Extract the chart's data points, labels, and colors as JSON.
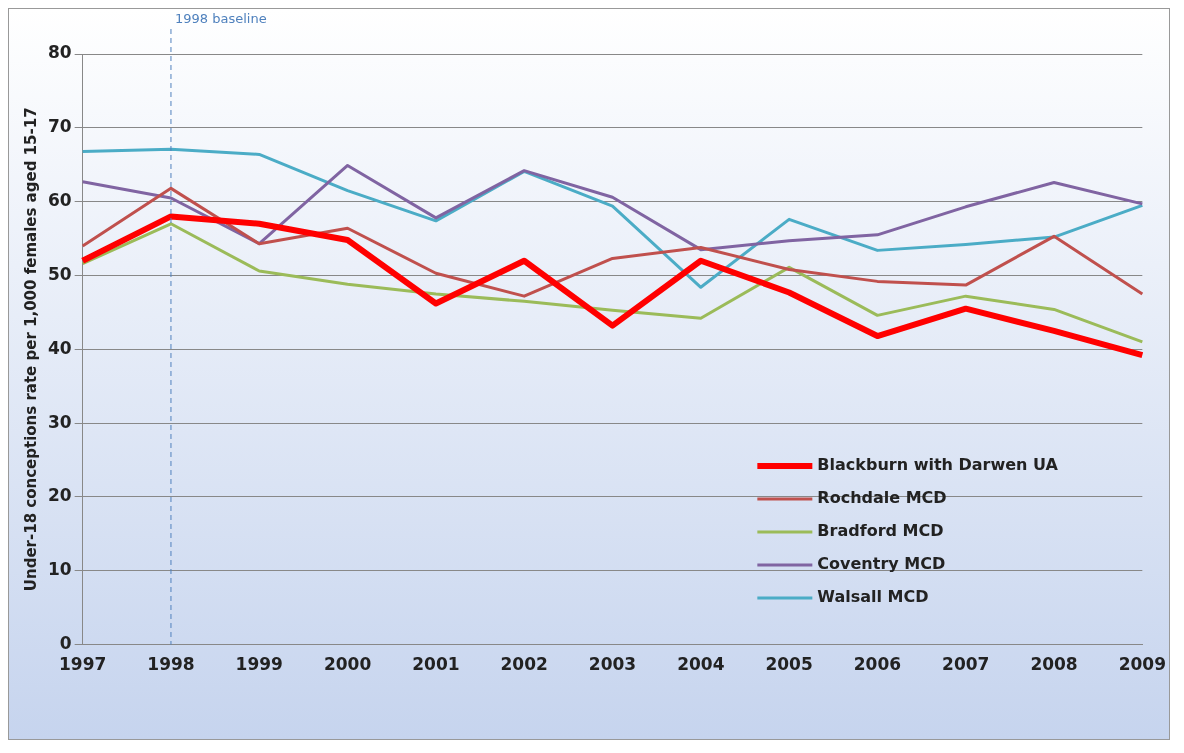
{
  "chart_data": {
    "type": "line",
    "ylabel": "Under-18 conceptions rate per 1,000 females aged 15-17",
    "categories": [
      "1997",
      "1998",
      "1999",
      "2000",
      "2001",
      "2002",
      "2003",
      "2004",
      "2005",
      "2006",
      "2007",
      "2008",
      "2009"
    ],
    "series": [
      {
        "name": "Blackburn with Darwen UA",
        "color": "#ff0000",
        "values": [
          52,
          58,
          57,
          54.8,
          46.2,
          52,
          43.2,
          52,
          47.7,
          41.8,
          45.5,
          42.5,
          39.2
        ]
      },
      {
        "name": "Rochdale MCD",
        "color": "#c0504d",
        "values": [
          54,
          61.8,
          54.3,
          56.4,
          50.3,
          47.2,
          52.3,
          53.8,
          50.8,
          49.2,
          48.7,
          55.3,
          47.5
        ]
      },
      {
        "name": "Bradford MCD",
        "color": "#9bbb59",
        "values": [
          51.6,
          57,
          50.6,
          48.8,
          47.5,
          46.5,
          45.3,
          44.2,
          51.1,
          44.6,
          47.2,
          45.4,
          41
        ]
      },
      {
        "name": "Coventry MCD",
        "color": "#8064a2",
        "values": [
          62.7,
          60.5,
          54.3,
          64.9,
          57.8,
          64.2,
          60.6,
          53.5,
          54.7,
          55.5,
          59.3,
          62.6,
          59.7
        ]
      },
      {
        "name": "Walsall MCD",
        "color": "#4bacc6",
        "values": [
          66.8,
          67.1,
          66.4,
          61.5,
          57.4,
          64.1,
          59.4,
          48.4,
          57.6,
          53.4,
          54.2,
          55.2,
          59.5
        ]
      }
    ],
    "ylim": [
      0,
      80
    ],
    "yticks": [
      0,
      10,
      20,
      30,
      40,
      50,
      60,
      70,
      80
    ],
    "grid": "y",
    "legend": "bottom right",
    "marker": "none",
    "line_style": "solid",
    "ref_lines": [
      {
        "axis": "x",
        "value": "1998",
        "label": "1998 baseline",
        "color": "#4f81bd",
        "line_style": "dashed"
      }
    ]
  }
}
